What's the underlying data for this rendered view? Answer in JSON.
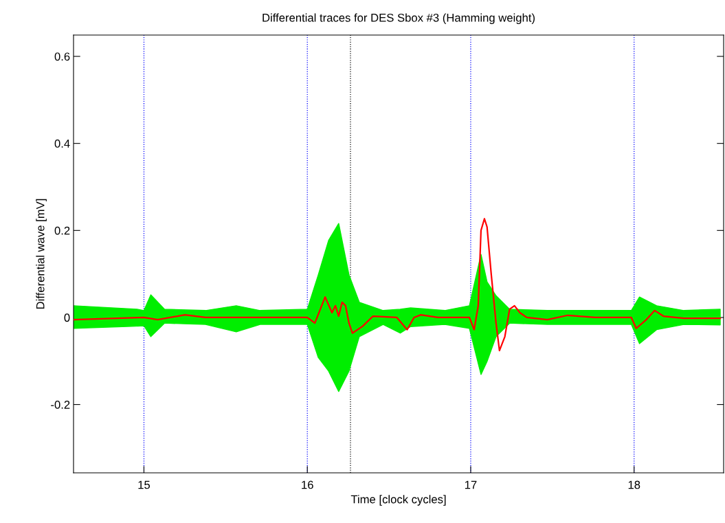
{
  "chart_data": {
    "type": "line",
    "title": "Differential traces for DES Sbox #3 (Hamming weight)",
    "xlabel": "Time [clock cycles]",
    "ylabel": "Differential wave [mV]",
    "xlim": [
      14.569,
      18.548
    ],
    "ylim": [
      -0.357,
      0.649
    ],
    "xticks": [
      15,
      16,
      17,
      18
    ],
    "yticks": [
      -0.2,
      0,
      0.2,
      0.4,
      0.6
    ],
    "grid": false,
    "legend": false,
    "ref_lines": [
      {
        "axis": "x",
        "value": 15,
        "color": "#0000ff",
        "line_style": "dotted"
      },
      {
        "axis": "x",
        "value": 16,
        "color": "#0000ff",
        "line_style": "dotted"
      },
      {
        "axis": "x",
        "value": 17,
        "color": "#0000ff",
        "line_style": "dotted"
      },
      {
        "axis": "x",
        "value": 18,
        "color": "#0000ff",
        "line_style": "dotted"
      },
      {
        "axis": "x",
        "value": 16.264,
        "color": "#000000",
        "line_style": "dotted"
      }
    ],
    "series": [
      {
        "type": "area",
        "color": "#00ee00",
        "x": [
          14.569,
          14.958,
          15.0,
          15.042,
          15.126,
          15.377,
          15.565,
          15.711,
          16.0,
          16.067,
          16.13,
          16.192,
          16.255,
          16.318,
          16.464,
          16.569,
          16.632,
          16.841,
          16.992,
          17.063,
          17.1,
          17.155,
          17.238,
          17.469,
          17.983,
          18.033,
          18.138,
          18.305,
          18.527
        ],
        "values": [
          0.027,
          0.019,
          0.016,
          0.052,
          0.019,
          0.016,
          0.027,
          0.016,
          0.019,
          0.098,
          0.177,
          0.216,
          0.098,
          0.035,
          0.016,
          0.019,
          0.022,
          0.016,
          0.027,
          0.145,
          0.082,
          0.05,
          0.019,
          0.016,
          0.016,
          0.047,
          0.027,
          0.016,
          0.019
        ]
      },
      {
        "type": "area",
        "color": "#00ee00",
        "x": [
          14.569,
          14.958,
          15.0,
          15.042,
          15.126,
          15.377,
          15.565,
          15.711,
          16.0,
          16.067,
          16.13,
          16.192,
          16.255,
          16.318,
          16.464,
          16.569,
          16.632,
          16.841,
          16.992,
          17.063,
          17.1,
          17.155,
          17.238,
          17.469,
          17.983,
          18.033,
          18.138,
          18.305,
          18.527
        ],
        "values": [
          -0.025,
          -0.02,
          -0.019,
          -0.044,
          -0.013,
          -0.016,
          -0.033,
          -0.016,
          -0.016,
          -0.092,
          -0.123,
          -0.17,
          -0.123,
          -0.044,
          -0.016,
          -0.036,
          -0.021,
          -0.016,
          -0.025,
          -0.131,
          -0.101,
          -0.044,
          -0.013,
          -0.016,
          -0.016,
          -0.06,
          -0.028,
          -0.016,
          -0.017
        ]
      },
      {
        "color": "#ff0000",
        "x": [
          14.569,
          15.0,
          15.084,
          15.251,
          15.377,
          15.753,
          16.0,
          16.046,
          16.109,
          16.151,
          16.172,
          16.192,
          16.213,
          16.234,
          16.255,
          16.276,
          16.339,
          16.402,
          16.548,
          16.611,
          16.653,
          16.695,
          16.799,
          16.992,
          17.021,
          17.046,
          17.063,
          17.084,
          17.1,
          17.126,
          17.155,
          17.176,
          17.209,
          17.238,
          17.268,
          17.301,
          17.343,
          17.469,
          17.594,
          17.762,
          17.983,
          18.013,
          18.075,
          18.126,
          18.18,
          18.305,
          18.527
        ],
        "values": [
          -0.005,
          0,
          -0.005,
          0.006,
          0,
          0,
          0,
          -0.013,
          0.047,
          0.011,
          0.027,
          0.003,
          0.035,
          0.027,
          -0.013,
          -0.036,
          -0.02,
          0.003,
          0,
          -0.028,
          0,
          0.006,
          0,
          0,
          -0.028,
          0.027,
          0.2,
          0.227,
          0.208,
          0.098,
          -0.013,
          -0.076,
          -0.044,
          0.019,
          0.027,
          0.011,
          0,
          -0.005,
          0.005,
          0,
          0,
          -0.025,
          -0.005,
          0.016,
          0.003,
          -0.002,
          -0.002
        ]
      }
    ]
  }
}
